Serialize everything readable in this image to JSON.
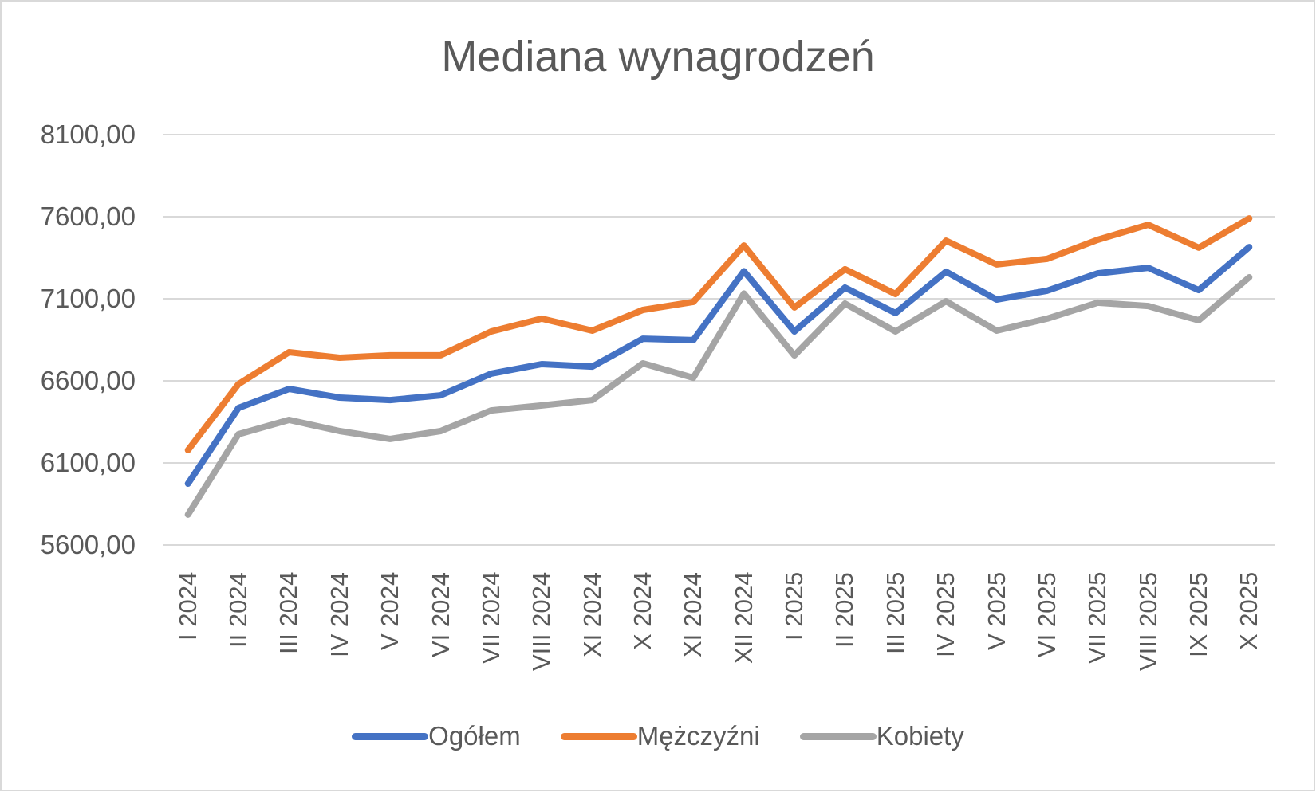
{
  "chart_data": {
    "type": "line",
    "title": "Mediana wynagrodzeń",
    "xlabel": "",
    "ylabel": "",
    "ylim": [
      5600,
      8100
    ],
    "yticks": [
      "5600,00",
      "6100,00",
      "6600,00",
      "7100,00",
      "7600,00",
      "8100,00"
    ],
    "grid": true,
    "legend_position": "bottom",
    "categories": [
      "I 2024",
      "II 2024",
      "III 2024",
      "IV 2024",
      "V 2024",
      "VI 2024",
      "VII 2024",
      "VIII 2024",
      "XI 2024",
      "X 2024",
      "XI 2024",
      "XII 2024",
      "I 2025",
      "II 2025",
      "III 2025",
      "IV 2025",
      "V 2025",
      "VI 2025",
      "VII 2025",
      "VIII 2025",
      "IX 2025",
      "X 2025"
    ],
    "series": [
      {
        "name": "Ogółem",
        "color": "#4472c4",
        "values": [
          5974,
          6435,
          6551,
          6498,
          6483,
          6512,
          6644,
          6702,
          6687,
          6857,
          6848,
          7268,
          6901,
          7168,
          7013,
          7265,
          7095,
          7149,
          7255,
          7289,
          7153,
          7415
        ]
      },
      {
        "name": "Mężczyźni",
        "color": "#ed7d31",
        "values": [
          6178,
          6580,
          6775,
          6741,
          6756,
          6756,
          6901,
          6979,
          6906,
          7032,
          7081,
          7425,
          7047,
          7280,
          7129,
          7454,
          7309,
          7343,
          7459,
          7551,
          7411,
          7590
        ]
      },
      {
        "name": "Kobiety",
        "color": "#a5a5a5",
        "values": [
          5785,
          6275,
          6362,
          6294,
          6246,
          6294,
          6420,
          6450,
          6483,
          6707,
          6619,
          7132,
          6755,
          7071,
          6901,
          7085,
          6906,
          6979,
          7076,
          7056,
          6969,
          7231
        ]
      }
    ]
  },
  "colors": {
    "text": "#595959",
    "grid": "#d9d9d9",
    "border": "#d9d9d9"
  }
}
